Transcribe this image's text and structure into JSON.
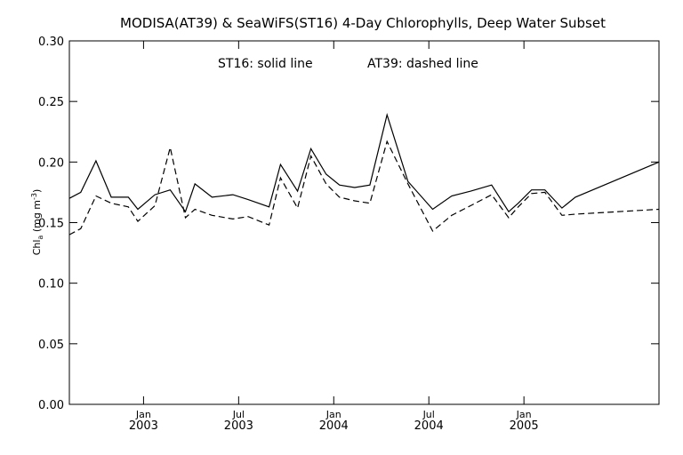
{
  "chart_data": {
    "type": "line",
    "title": "MODISA(AT39) & SeaWiFS(ST16) 4-Day Chlorophylls, Deep Water Subset",
    "annotation_left": "ST16: solid line",
    "annotation_right": "AT39: dashed line",
    "ylabel_main": "Chl",
    "ylabel_sub": "a",
    "ylabel_units": " (mg m",
    "ylabel_sup": "-3",
    "ylabel_close": ")",
    "ylim": [
      0,
      0.3
    ],
    "y_ticks": [
      "0.00",
      "0.05",
      "0.10",
      "0.15",
      "0.20",
      "0.25",
      "0.30"
    ],
    "x_ticks": [
      {
        "month": "Jan",
        "year": "2003",
        "t": 2003.0
      },
      {
        "month": "Jul",
        "year": "2003",
        "t": 2003.5
      },
      {
        "month": "Jan",
        "year": "2004",
        "t": 2004.0
      },
      {
        "month": "Jul",
        "year": "2004",
        "t": 2004.5
      },
      {
        "month": "Jan",
        "year": "2005",
        "t": 2005.0
      }
    ],
    "xlim": [
      2002.61,
      2005.71
    ],
    "grid": false,
    "series": [
      {
        "name": "ST16",
        "style": "solid",
        "x": [
          2002.61,
          2002.67,
          2002.75,
          2002.83,
          2002.92,
          2002.97,
          2003.06,
          2003.14,
          2003.22,
          2003.27,
          2003.36,
          2003.47,
          2003.55,
          2003.66,
          2003.72,
          2003.81,
          2003.88,
          2003.96,
          2004.03,
          2004.11,
          2004.19,
          2004.28,
          2004.39,
          2004.52,
          2004.62,
          2004.72,
          2004.83,
          2004.92,
          2004.97,
          2005.04,
          2005.11,
          2005.2,
          2005.27,
          2005.71
        ],
        "y": [
          0.17,
          0.175,
          0.201,
          0.171,
          0.171,
          0.161,
          0.173,
          0.177,
          0.159,
          0.182,
          0.171,
          0.173,
          0.169,
          0.163,
          0.198,
          0.176,
          0.211,
          0.19,
          0.181,
          0.179,
          0.181,
          0.239,
          0.184,
          0.161,
          0.172,
          0.176,
          0.181,
          0.159,
          0.166,
          0.177,
          0.177,
          0.162,
          0.171,
          0.2
        ]
      },
      {
        "name": "AT39",
        "style": "dashed",
        "x": [
          2002.61,
          2002.67,
          2002.75,
          2002.83,
          2002.92,
          2002.97,
          2003.06,
          2003.14,
          2003.22,
          2003.27,
          2003.36,
          2003.47,
          2003.55,
          2003.66,
          2003.72,
          2003.81,
          2003.88,
          2003.96,
          2004.03,
          2004.11,
          2004.19,
          2004.28,
          2004.39,
          2004.52,
          2004.62,
          2004.72,
          2004.83,
          2004.92,
          2004.97,
          2005.04,
          2005.11,
          2005.2,
          2005.27,
          2005.71
        ],
        "y": [
          0.14,
          0.145,
          0.172,
          0.166,
          0.163,
          0.151,
          0.164,
          0.212,
          0.154,
          0.161,
          0.156,
          0.153,
          0.155,
          0.148,
          0.187,
          0.162,
          0.205,
          0.182,
          0.171,
          0.168,
          0.166,
          0.217,
          0.182,
          0.143,
          0.156,
          0.164,
          0.173,
          0.154,
          0.163,
          0.174,
          0.175,
          0.156,
          0.157,
          0.161
        ]
      }
    ]
  }
}
